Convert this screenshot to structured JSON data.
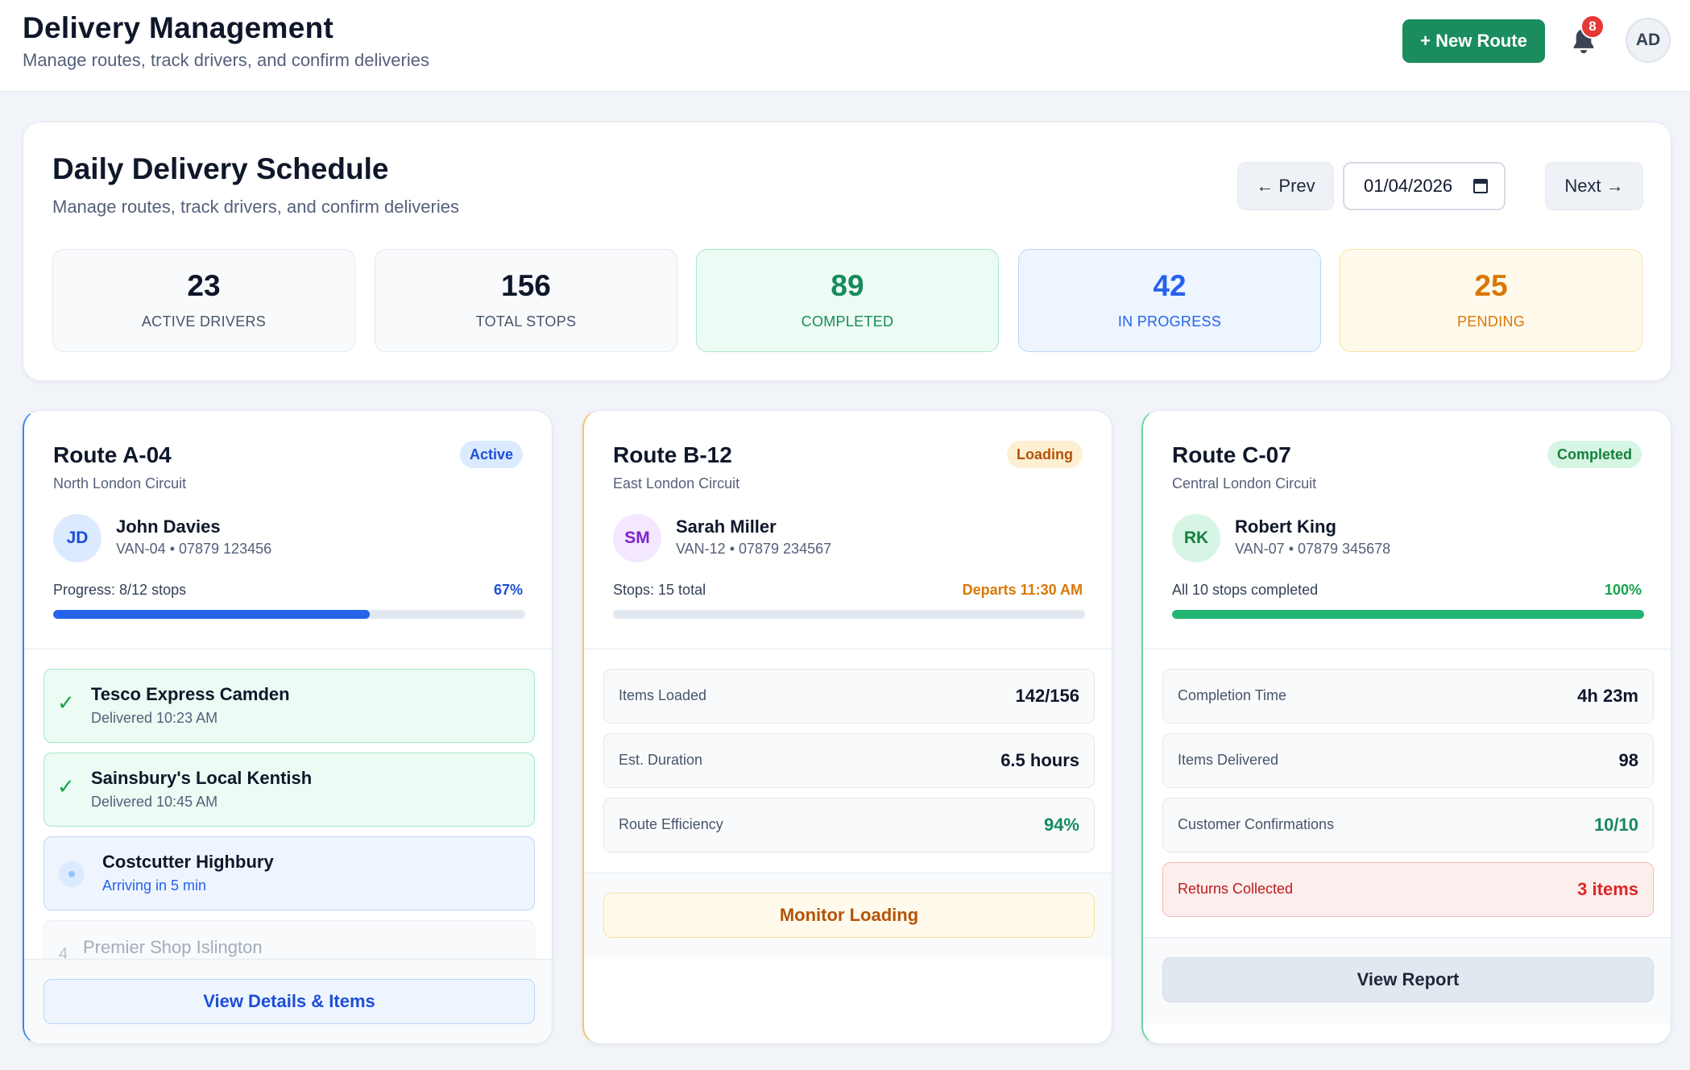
{
  "header": {
    "title": "Delivery Management",
    "subtitle": "Manage routes, track drivers, and confirm deliveries",
    "new_route_label": "+ New Route",
    "notifications_count": "8",
    "user_initials": "AD"
  },
  "schedule": {
    "title": "Daily Delivery Schedule",
    "subtitle": "Manage routes, track drivers, and confirm deliveries",
    "prev_label": "← Prev",
    "next_label": "Next →",
    "date": "01/04/2026",
    "stats": [
      {
        "value": "23",
        "label": "ACTIVE DRIVERS",
        "color": "#0f172a"
      },
      {
        "value": "156",
        "label": "TOTAL STOPS",
        "color": "#0f172a"
      },
      {
        "value": "89",
        "label": "COMPLETED",
        "color": "#178a5c"
      },
      {
        "value": "42",
        "label": "IN PROGRESS",
        "color": "#2563eb"
      },
      {
        "value": "25",
        "label": "PENDING",
        "color": "#d97706"
      }
    ]
  },
  "routes": [
    {
      "title": "Route A-04",
      "area": "North London Circuit",
      "status": "Active",
      "driver_initials": "JD",
      "driver_name": "John Davies",
      "driver_meta": "VAN-04 • 07879 123456",
      "progress_label": "Progress: 8/12 stops",
      "progress_value": "67%",
      "progress_fraction": 0.67,
      "stops": [
        {
          "name": "Tesco Express Camden",
          "status": "Delivered 10:23 AM"
        },
        {
          "name": "Sainsbury's Local Kentish",
          "status": "Delivered 10:45 AM"
        },
        {
          "name": "Costcutter Highbury",
          "status": "Arriving in 5 min"
        },
        {
          "number": "4",
          "name": "Premier Shop Islington"
        }
      ],
      "action_label": "View Details & Items"
    },
    {
      "title": "Route B-12",
      "area": "East London Circuit",
      "status": "Loading",
      "driver_initials": "SM",
      "driver_name": "Sarah Miller",
      "driver_meta": "VAN-12 • 07879 234567",
      "progress_label": "Stops: 15 total",
      "progress_value": "Departs 11:30 AM",
      "progress_fraction": 0,
      "metrics": [
        {
          "label": "Items Loaded",
          "value": "142/156"
        },
        {
          "label": "Est. Duration",
          "value": "6.5 hours"
        },
        {
          "label": "Route Efficiency",
          "value": "94%"
        }
      ],
      "action_label": "Monitor Loading"
    },
    {
      "title": "Route C-07",
      "area": "Central London Circuit",
      "status": "Completed",
      "driver_initials": "RK",
      "driver_name": "Robert King",
      "driver_meta": "VAN-07 • 07879 345678",
      "progress_label": "All 10 stops completed",
      "progress_value": "100%",
      "progress_fraction": 1.0,
      "metrics": [
        {
          "label": "Completion Time",
          "value": "4h 23m"
        },
        {
          "label": "Items Delivered",
          "value": "98"
        },
        {
          "label": "Customer Confirmations",
          "value": "10/10"
        },
        {
          "label": "Returns Collected",
          "value": "3 items"
        }
      ],
      "action_label": "View Report"
    }
  ]
}
